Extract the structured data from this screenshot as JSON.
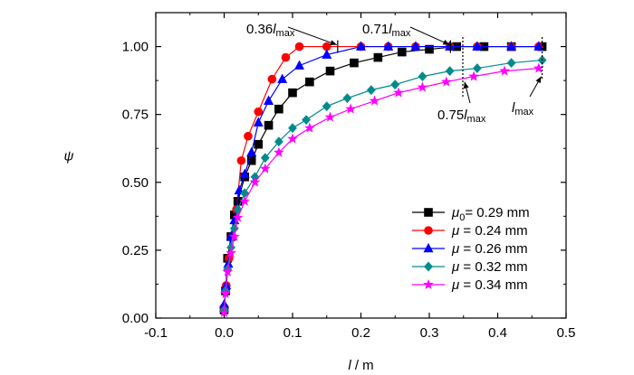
{
  "chart_data": {
    "type": "line",
    "xlabel": {
      "var": "l",
      "sep": " / ",
      "unit": "m"
    },
    "ylabel": "ψ",
    "xlim": [
      -0.1,
      0.5
    ],
    "ylim": [
      0.0,
      1.125
    ],
    "xticks": [
      "-0.1",
      "0.0",
      "0.1",
      "0.2",
      "0.3",
      "0.4",
      "0.5"
    ],
    "yticks": [
      "0.00",
      "0.25",
      "0.50",
      "0.75",
      "1.00"
    ],
    "grid": false,
    "legend": {
      "position": "bottom-right"
    },
    "series": [
      {
        "name": {
          "sym": "μ",
          "sub": "0",
          "rest": "= 0.29 mm"
        },
        "color": "#000000",
        "marker": "square",
        "x": [
          0.0,
          0.002,
          0.005,
          0.01,
          0.015,
          0.02,
          0.03,
          0.04,
          0.05,
          0.065,
          0.08,
          0.1,
          0.125,
          0.155,
          0.19,
          0.225,
          0.26,
          0.3,
          0.34,
          0.38,
          0.42,
          0.465
        ],
        "y": [
          0.03,
          0.1,
          0.22,
          0.3,
          0.38,
          0.43,
          0.52,
          0.58,
          0.64,
          0.71,
          0.77,
          0.83,
          0.87,
          0.91,
          0.94,
          0.96,
          0.98,
          0.99,
          1.0,
          1.0,
          1.0,
          1.0
        ]
      },
      {
        "name": {
          "sym": "μ",
          "sub": "",
          "rest": " = 0.24 mm"
        },
        "color": "#ff0000",
        "marker": "circle",
        "x": [
          0.0,
          0.003,
          0.007,
          0.012,
          0.018,
          0.025,
          0.035,
          0.05,
          0.07,
          0.09,
          0.11,
          0.15,
          0.2,
          0.24,
          0.28,
          0.33,
          0.37,
          0.42,
          0.46
        ],
        "y": [
          0.04,
          0.12,
          0.22,
          0.3,
          0.4,
          0.58,
          0.67,
          0.76,
          0.88,
          0.96,
          1.0,
          1.0,
          1.0,
          1.0,
          1.0,
          1.0,
          1.0,
          1.0,
          1.0
        ]
      },
      {
        "name": {
          "sym": "μ",
          "sub": "",
          "rest": " = 0.26 mm"
        },
        "color": "#0000ff",
        "marker": "triangle",
        "x": [
          0.0,
          0.003,
          0.006,
          0.01,
          0.015,
          0.022,
          0.03,
          0.04,
          0.05,
          0.065,
          0.085,
          0.11,
          0.15,
          0.2,
          0.24,
          0.28,
          0.33,
          0.37,
          0.42,
          0.46
        ],
        "y": [
          0.05,
          0.12,
          0.2,
          0.3,
          0.36,
          0.47,
          0.53,
          0.61,
          0.72,
          0.8,
          0.88,
          0.93,
          0.97,
          1.0,
          1.0,
          1.0,
          1.0,
          1.0,
          1.0,
          1.0
        ]
      },
      {
        "name": {
          "sym": "μ",
          "sub": "",
          "rest": " = 0.32 mm"
        },
        "color": "#008b8b",
        "marker": "diamond",
        "x": [
          0.0,
          0.002,
          0.005,
          0.01,
          0.015,
          0.02,
          0.03,
          0.045,
          0.06,
          0.08,
          0.1,
          0.12,
          0.15,
          0.18,
          0.215,
          0.25,
          0.29,
          0.33,
          0.37,
          0.42,
          0.465
        ],
        "y": [
          0.03,
          0.1,
          0.18,
          0.26,
          0.33,
          0.4,
          0.46,
          0.52,
          0.59,
          0.65,
          0.7,
          0.73,
          0.78,
          0.81,
          0.84,
          0.86,
          0.89,
          0.91,
          0.92,
          0.94,
          0.95
        ]
      },
      {
        "name": {
          "sym": "μ",
          "sub": "",
          "rest": " = 0.34 mm"
        },
        "color": "#ff00ff",
        "marker": "star",
        "x": [
          0.0,
          0.002,
          0.005,
          0.01,
          0.015,
          0.02,
          0.03,
          0.045,
          0.06,
          0.08,
          0.1,
          0.125,
          0.155,
          0.185,
          0.22,
          0.255,
          0.29,
          0.325,
          0.365,
          0.41,
          0.46
        ],
        "y": [
          0.02,
          0.09,
          0.17,
          0.24,
          0.3,
          0.37,
          0.43,
          0.5,
          0.55,
          0.61,
          0.66,
          0.7,
          0.74,
          0.77,
          0.8,
          0.83,
          0.85,
          0.87,
          0.89,
          0.91,
          0.92
        ]
      }
    ],
    "annotations": [
      {
        "id": "a036",
        "coef": "0.36",
        "var": "l",
        "sub": "max"
      },
      {
        "id": "a071",
        "coef": "0.71",
        "var": "l",
        "sub": "max"
      },
      {
        "id": "a075",
        "coef": "0.75",
        "var": "l",
        "sub": "max"
      },
      {
        "id": "amax",
        "coef": "",
        "var": "l",
        "sub": "max"
      }
    ]
  }
}
